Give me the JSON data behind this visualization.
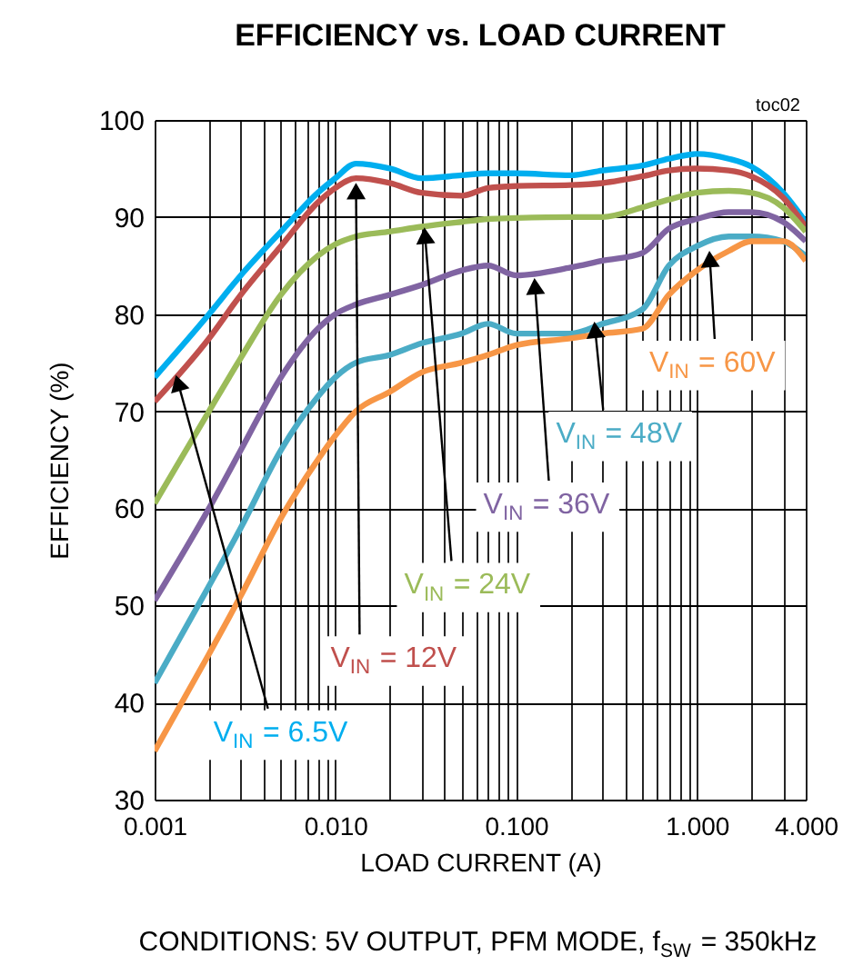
{
  "chart_data": {
    "type": "line",
    "title": "EFFICIENCY vs. LOAD CURRENT",
    "xlabel": "LOAD CURRENT (A)",
    "ylabel": "EFFICIENCY (%)",
    "x": [
      0.001,
      0.002,
      0.003,
      0.005,
      0.008,
      0.01,
      0.013,
      0.02,
      0.03,
      0.05,
      0.07,
      0.1,
      0.2,
      0.3,
      0.5,
      0.7,
      1,
      1.5,
      2,
      3,
      4
    ],
    "series": [
      {
        "color": "#00aeef",
        "values": [
          73.5,
          80,
          84,
          88.5,
          92.5,
          94,
          95.5,
          95,
          94,
          94.3,
          94.5,
          94.5,
          94.3,
          94.8,
          95.3,
          96,
          96.5,
          96,
          95.2,
          92.5,
          89.5
        ]
      },
      {
        "color": "#c0504d",
        "values": [
          71,
          77.5,
          82,
          87,
          91.5,
          93,
          94,
          93.5,
          92.5,
          92.2,
          93,
          93.2,
          93.3,
          93.5,
          94.2,
          94.8,
          95,
          94.8,
          94.2,
          92,
          89
        ]
      },
      {
        "color": "#9bbb59",
        "values": [
          60.5,
          70,
          75.5,
          82,
          86,
          87.2,
          88,
          88.5,
          89,
          89.5,
          89.8,
          89.9,
          90,
          90,
          91,
          91.8,
          92.5,
          92.7,
          92.5,
          91,
          88.5
        ]
      },
      {
        "color": "#8064a2",
        "values": [
          50.5,
          60,
          66,
          73.5,
          78.5,
          80,
          81,
          82,
          83,
          84.5,
          85,
          84,
          84.8,
          85.5,
          86.3,
          88.8,
          89.8,
          90.5,
          90.5,
          89.5,
          87.5
        ]
      },
      {
        "color": "#4bacc6",
        "values": [
          42,
          52,
          58,
          66,
          71.5,
          73.5,
          75,
          75.8,
          77,
          78,
          79,
          78,
          78,
          79,
          80.5,
          85,
          87,
          88,
          88,
          87.5,
          86
        ]
      },
      {
        "color": "#f79646",
        "values": [
          35,
          45,
          51,
          59,
          65,
          67.5,
          70,
          72,
          74,
          75,
          75.8,
          76.8,
          77.5,
          78,
          78.5,
          82,
          84.5,
          86.5,
          87.5,
          87.5,
          85.5
        ]
      }
    ],
    "log": "x",
    "xlim": [
      0.001,
      4
    ],
    "ylim": [
      30,
      100
    ],
    "xticks": [
      0.001,
      {
        "value": 0.002,
        "label": null
      },
      {
        "value": 0.003,
        "label": null
      },
      {
        "value": 0.004,
        "label": null
      },
      {
        "value": 0.005,
        "label": null
      },
      {
        "value": 0.006,
        "label": null
      },
      {
        "value": 0.007,
        "label": null
      },
      {
        "value": 0.008,
        "label": null
      },
      {
        "value": 0.009,
        "label": null
      },
      {
        "value": 0.01,
        "label": "0.010"
      },
      {
        "value": 0.02,
        "label": null
      },
      {
        "value": 0.03,
        "label": null
      },
      {
        "value": 0.04,
        "label": null
      },
      {
        "value": 0.05,
        "label": null
      },
      {
        "value": 0.06,
        "label": null
      },
      {
        "value": 0.07,
        "label": null
      },
      {
        "value": 0.08,
        "label": null
      },
      {
        "value": 0.09,
        "label": null
      },
      {
        "value": 0.1,
        "label": "0.100"
      },
      {
        "value": 0.2,
        "label": null
      },
      {
        "value": 0.3,
        "label": null
      },
      {
        "value": 0.4,
        "label": null
      },
      {
        "value": 0.5,
        "label": null
      },
      {
        "value": 0.6,
        "label": null
      },
      {
        "value": 0.7,
        "label": null
      },
      {
        "value": 0.8,
        "label": null
      },
      {
        "value": 0.9,
        "label": null
      },
      {
        "value": 1,
        "label": "1.000"
      },
      {
        "value": 2,
        "label": null
      },
      {
        "value": 3,
        "label": null
      },
      {
        "value": 4,
        "label": "4.000"
      }
    ],
    "yticks": [
      30,
      40,
      50,
      60,
      70,
      80,
      90,
      100
    ],
    "grid": true,
    "line_style": "solid",
    "marker": "none",
    "annotations": [
      {
        "text": "V$_{IN}$ = 6.5V",
        "x": 0.0013,
        "y": 74
      },
      {
        "text": "V$_{IN}$ = 12V",
        "x": 0.013,
        "y": 93.8
      },
      {
        "text": "V$_{IN}$ = 24V",
        "x": 0.031,
        "y": 89.2
      },
      {
        "text": "V$_{IN}$ = 36V",
        "x": 0.126,
        "y": 84
      },
      {
        "text": "V$_{IN}$ = 48V",
        "x": 0.27,
        "y": 79.5
      },
      {
        "text": "V$_{IN}$ = 60V",
        "x": 1.17,
        "y": 86.8
      },
      "toc02",
      "CONDITIONS: 5V OUTPUT, PFM MODE, f$_{SW}$ = 350kHz"
    ]
  }
}
